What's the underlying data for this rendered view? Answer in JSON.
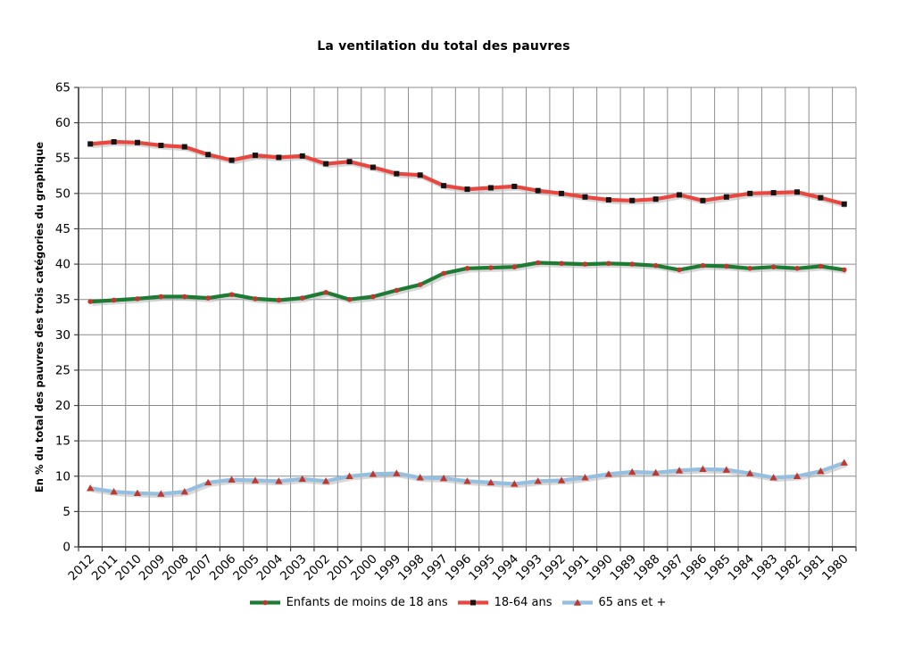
{
  "page": {
    "background": "#ffffff"
  },
  "chart_data": {
    "type": "line",
    "title": "La ventilation du total des pauvres",
    "xlabel": "",
    "ylabel": "En % du total des pauvres des trois catégories du graphique",
    "ylim": [
      0,
      65
    ],
    "ytick_step": 5,
    "grid": true,
    "legend_position": "bottom",
    "categories": [
      "2012",
      "2011",
      "2010",
      "2009",
      "2008",
      "2007",
      "2006",
      "2005",
      "2004",
      "2003",
      "2002",
      "2001",
      "2000",
      "1999",
      "1998",
      "1997",
      "1996",
      "1995",
      "1994",
      "1993",
      "1992",
      "1991",
      "1990",
      "1989",
      "1988",
      "1987",
      "1986",
      "1985",
      "1984",
      "1983",
      "1982",
      "1981",
      "1980"
    ],
    "series": [
      {
        "name": "Enfants de moins de 18 ans",
        "color": "#1E7B34",
        "marker": "circle",
        "marker_color": "#C2372C",
        "values": [
          34.7,
          34.9,
          35.1,
          35.4,
          35.4,
          35.2,
          35.7,
          35.1,
          34.9,
          35.2,
          36.0,
          35.0,
          35.4,
          36.3,
          37.1,
          38.7,
          39.4,
          39.5,
          39.6,
          40.2,
          40.1,
          40.0,
          40.1,
          40.0,
          39.8,
          39.2,
          39.8,
          39.7,
          39.4,
          39.6,
          39.4,
          39.7,
          39.2
        ]
      },
      {
        "name": "18-64 ans",
        "color": "#E8473F",
        "marker": "square",
        "marker_color": "#141414",
        "values": [
          57.0,
          57.3,
          57.2,
          56.8,
          56.6,
          55.5,
          54.7,
          55.4,
          55.1,
          55.3,
          54.2,
          54.5,
          53.7,
          52.8,
          52.6,
          51.1,
          50.6,
          50.8,
          51.0,
          50.4,
          50.0,
          49.5,
          49.1,
          49.0,
          49.2,
          49.8,
          49.0,
          49.5,
          50.0,
          50.1,
          50.2,
          49.4,
          48.5
        ]
      },
      {
        "name": "65 ans et +",
        "color": "#95BFE1",
        "marker": "triangle",
        "marker_color": "#C2372C",
        "values": [
          8.3,
          7.8,
          7.6,
          7.5,
          7.8,
          9.1,
          9.5,
          9.4,
          9.3,
          9.6,
          9.3,
          10.0,
          10.3,
          10.4,
          9.8,
          9.7,
          9.3,
          9.1,
          8.9,
          9.3,
          9.4,
          9.8,
          10.3,
          10.6,
          10.5,
          10.8,
          11.0,
          10.9,
          10.4,
          9.8,
          10.0,
          10.7,
          11.9
        ]
      }
    ],
    "style": {
      "gridline_color": "#8C8C8C",
      "axis_color": "#404040",
      "shadow_color": "#B8B8B8",
      "text_color": "#000000"
    }
  }
}
